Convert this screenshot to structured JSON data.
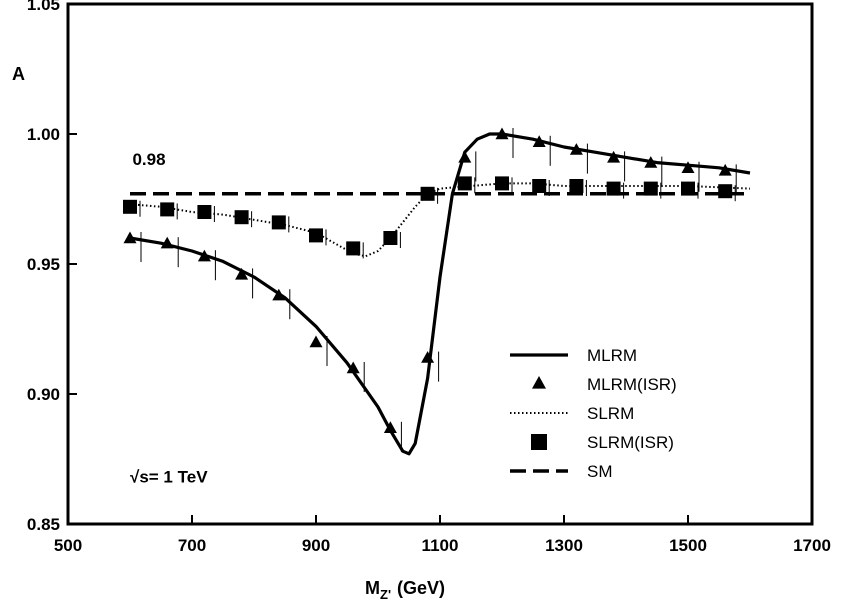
{
  "chart_data": {
    "type": "line",
    "title": "",
    "xlabel": "M",
    "xlabel_sub": "Z'",
    "xlabel_unit": "(GeV)",
    "ylabel": "A",
    "xlim": [
      500,
      1700
    ],
    "ylim": [
      0.85,
      1.05
    ],
    "xticks": [
      500,
      700,
      900,
      1100,
      1300,
      1500,
      1700
    ],
    "xtick_labels": [
      "500",
      "700",
      "900",
      "1100",
      "1300",
      "1500",
      "1700"
    ],
    "yticks": [
      0.85,
      0.9,
      0.95,
      1.0,
      1.05
    ],
    "ytick_labels": [
      "0.85",
      "0.90",
      "0.95",
      "1.00",
      "1.05"
    ],
    "grid": false,
    "legend_position": "bottom-right",
    "annotations": [
      {
        "text": "0.98",
        "x": 604,
        "y": 0.988
      },
      {
        "text": "√s= 1 TeV",
        "x": 600,
        "y": 0.866
      }
    ],
    "series": [
      {
        "name": "MLRM",
        "style": "solid",
        "x": [
          600,
          650,
          700,
          750,
          800,
          850,
          900,
          950,
          1000,
          1020,
          1040,
          1050,
          1060,
          1080,
          1100,
          1120,
          1140,
          1160,
          1180,
          1200,
          1250,
          1300,
          1350,
          1400,
          1450,
          1500,
          1550,
          1600
        ],
        "y": [
          0.96,
          0.958,
          0.955,
          0.951,
          0.945,
          0.937,
          0.926,
          0.912,
          0.895,
          0.886,
          0.878,
          0.877,
          0.881,
          0.906,
          0.945,
          0.977,
          0.993,
          0.998,
          1.0,
          1.0,
          0.998,
          0.995,
          0.993,
          0.991,
          0.989,
          0.988,
          0.987,
          0.985
        ]
      },
      {
        "name": "MLRM(ISR)",
        "style": "triangle",
        "x": [
          600,
          660,
          720,
          780,
          840,
          900,
          960,
          1020,
          1080,
          1140,
          1200,
          1260,
          1320,
          1380,
          1440,
          1500,
          1560
        ],
        "y": [
          0.96,
          0.958,
          0.953,
          0.946,
          0.938,
          0.92,
          0.91,
          0.887,
          0.914,
          0.991,
          1.0,
          0.997,
          0.994,
          0.991,
          0.989,
          0.987,
          0.986
        ]
      },
      {
        "name": "SLRM",
        "style": "dotted",
        "x": [
          600,
          650,
          700,
          750,
          800,
          850,
          900,
          930,
          960,
          980,
          1000,
          1020,
          1040,
          1060,
          1080,
          1100,
          1150,
          1200,
          1250,
          1300,
          1400,
          1500,
          1600
        ],
        "y": [
          0.973,
          0.972,
          0.97,
          0.969,
          0.967,
          0.965,
          0.962,
          0.958,
          0.954,
          0.953,
          0.955,
          0.96,
          0.966,
          0.972,
          0.977,
          0.979,
          0.98,
          0.981,
          0.981,
          0.98,
          0.98,
          0.98,
          0.979
        ]
      },
      {
        "name": "SLRM(ISR)",
        "style": "square",
        "x": [
          600,
          660,
          720,
          780,
          840,
          900,
          960,
          1020,
          1080,
          1140,
          1200,
          1260,
          1320,
          1380,
          1440,
          1500,
          1560
        ],
        "y": [
          0.972,
          0.971,
          0.97,
          0.968,
          0.966,
          0.961,
          0.956,
          0.96,
          0.977,
          0.981,
          0.981,
          0.98,
          0.98,
          0.979,
          0.979,
          0.979,
          0.978
        ]
      },
      {
        "name": "SM",
        "style": "dashed",
        "x": [
          600,
          1600
        ],
        "y": [
          0.977,
          0.977
        ]
      }
    ]
  }
}
